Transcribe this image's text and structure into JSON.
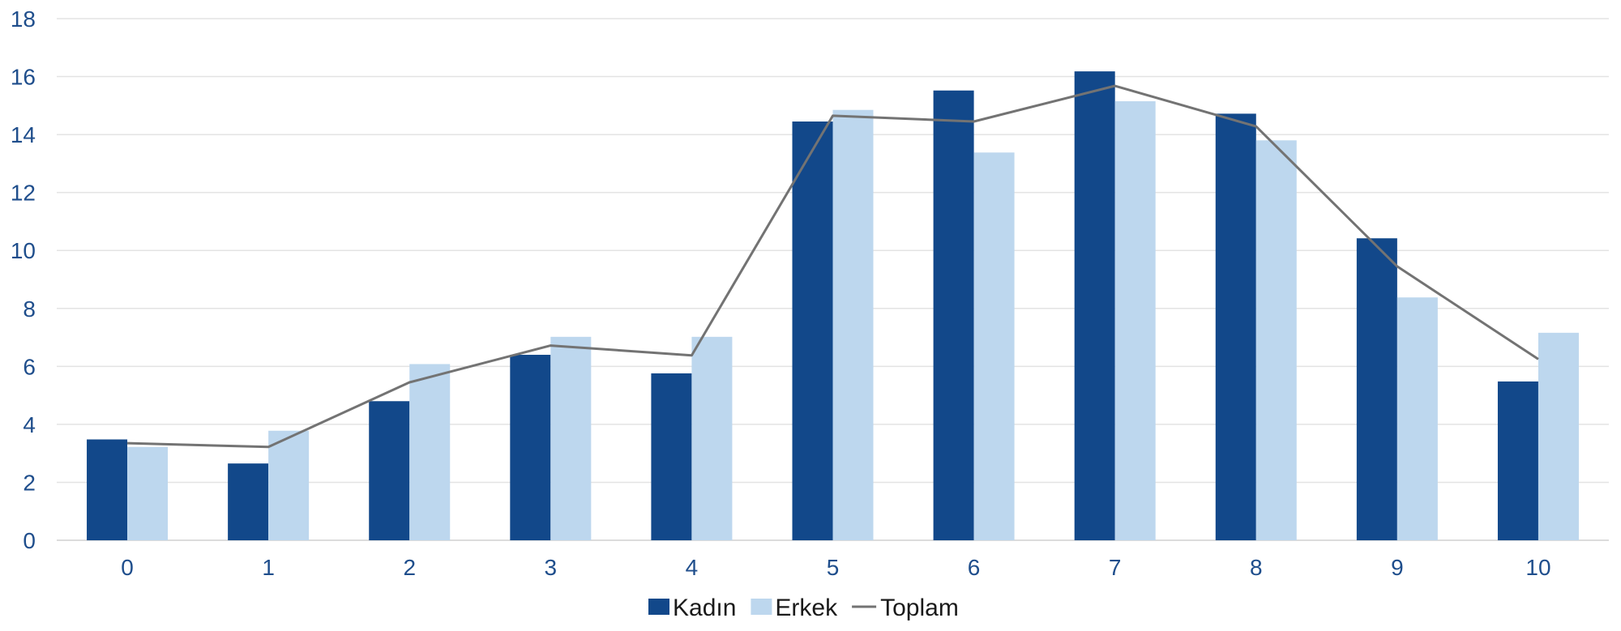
{
  "chart_data": {
    "type": "bar",
    "categories": [
      "0",
      "1",
      "2",
      "3",
      "4",
      "5",
      "6",
      "7",
      "8",
      "9",
      "10"
    ],
    "series": [
      {
        "name": "Kadın",
        "type": "bar",
        "color": "#12488a",
        "values": [
          3.48,
          2.65,
          4.8,
          6.4,
          5.76,
          14.45,
          15.52,
          16.18,
          14.72,
          10.42,
          5.48
        ]
      },
      {
        "name": "Erkek",
        "type": "bar",
        "color": "#bdd7ee",
        "values": [
          3.22,
          3.78,
          6.08,
          7.02,
          7.02,
          14.85,
          13.38,
          15.15,
          13.8,
          8.38,
          7.16
        ]
      },
      {
        "name": "Toplam",
        "type": "line",
        "color": "#737373",
        "values": [
          3.35,
          3.22,
          5.45,
          6.72,
          6.38,
          14.65,
          14.45,
          15.68,
          14.28,
          9.45,
          6.25
        ]
      }
    ],
    "ylim": [
      0,
      18
    ],
    "yticks": [
      "0",
      "2",
      "4",
      "6",
      "8",
      "10",
      "12",
      "14",
      "16",
      "18"
    ],
    "grid": true,
    "legend_position": "bottom"
  }
}
